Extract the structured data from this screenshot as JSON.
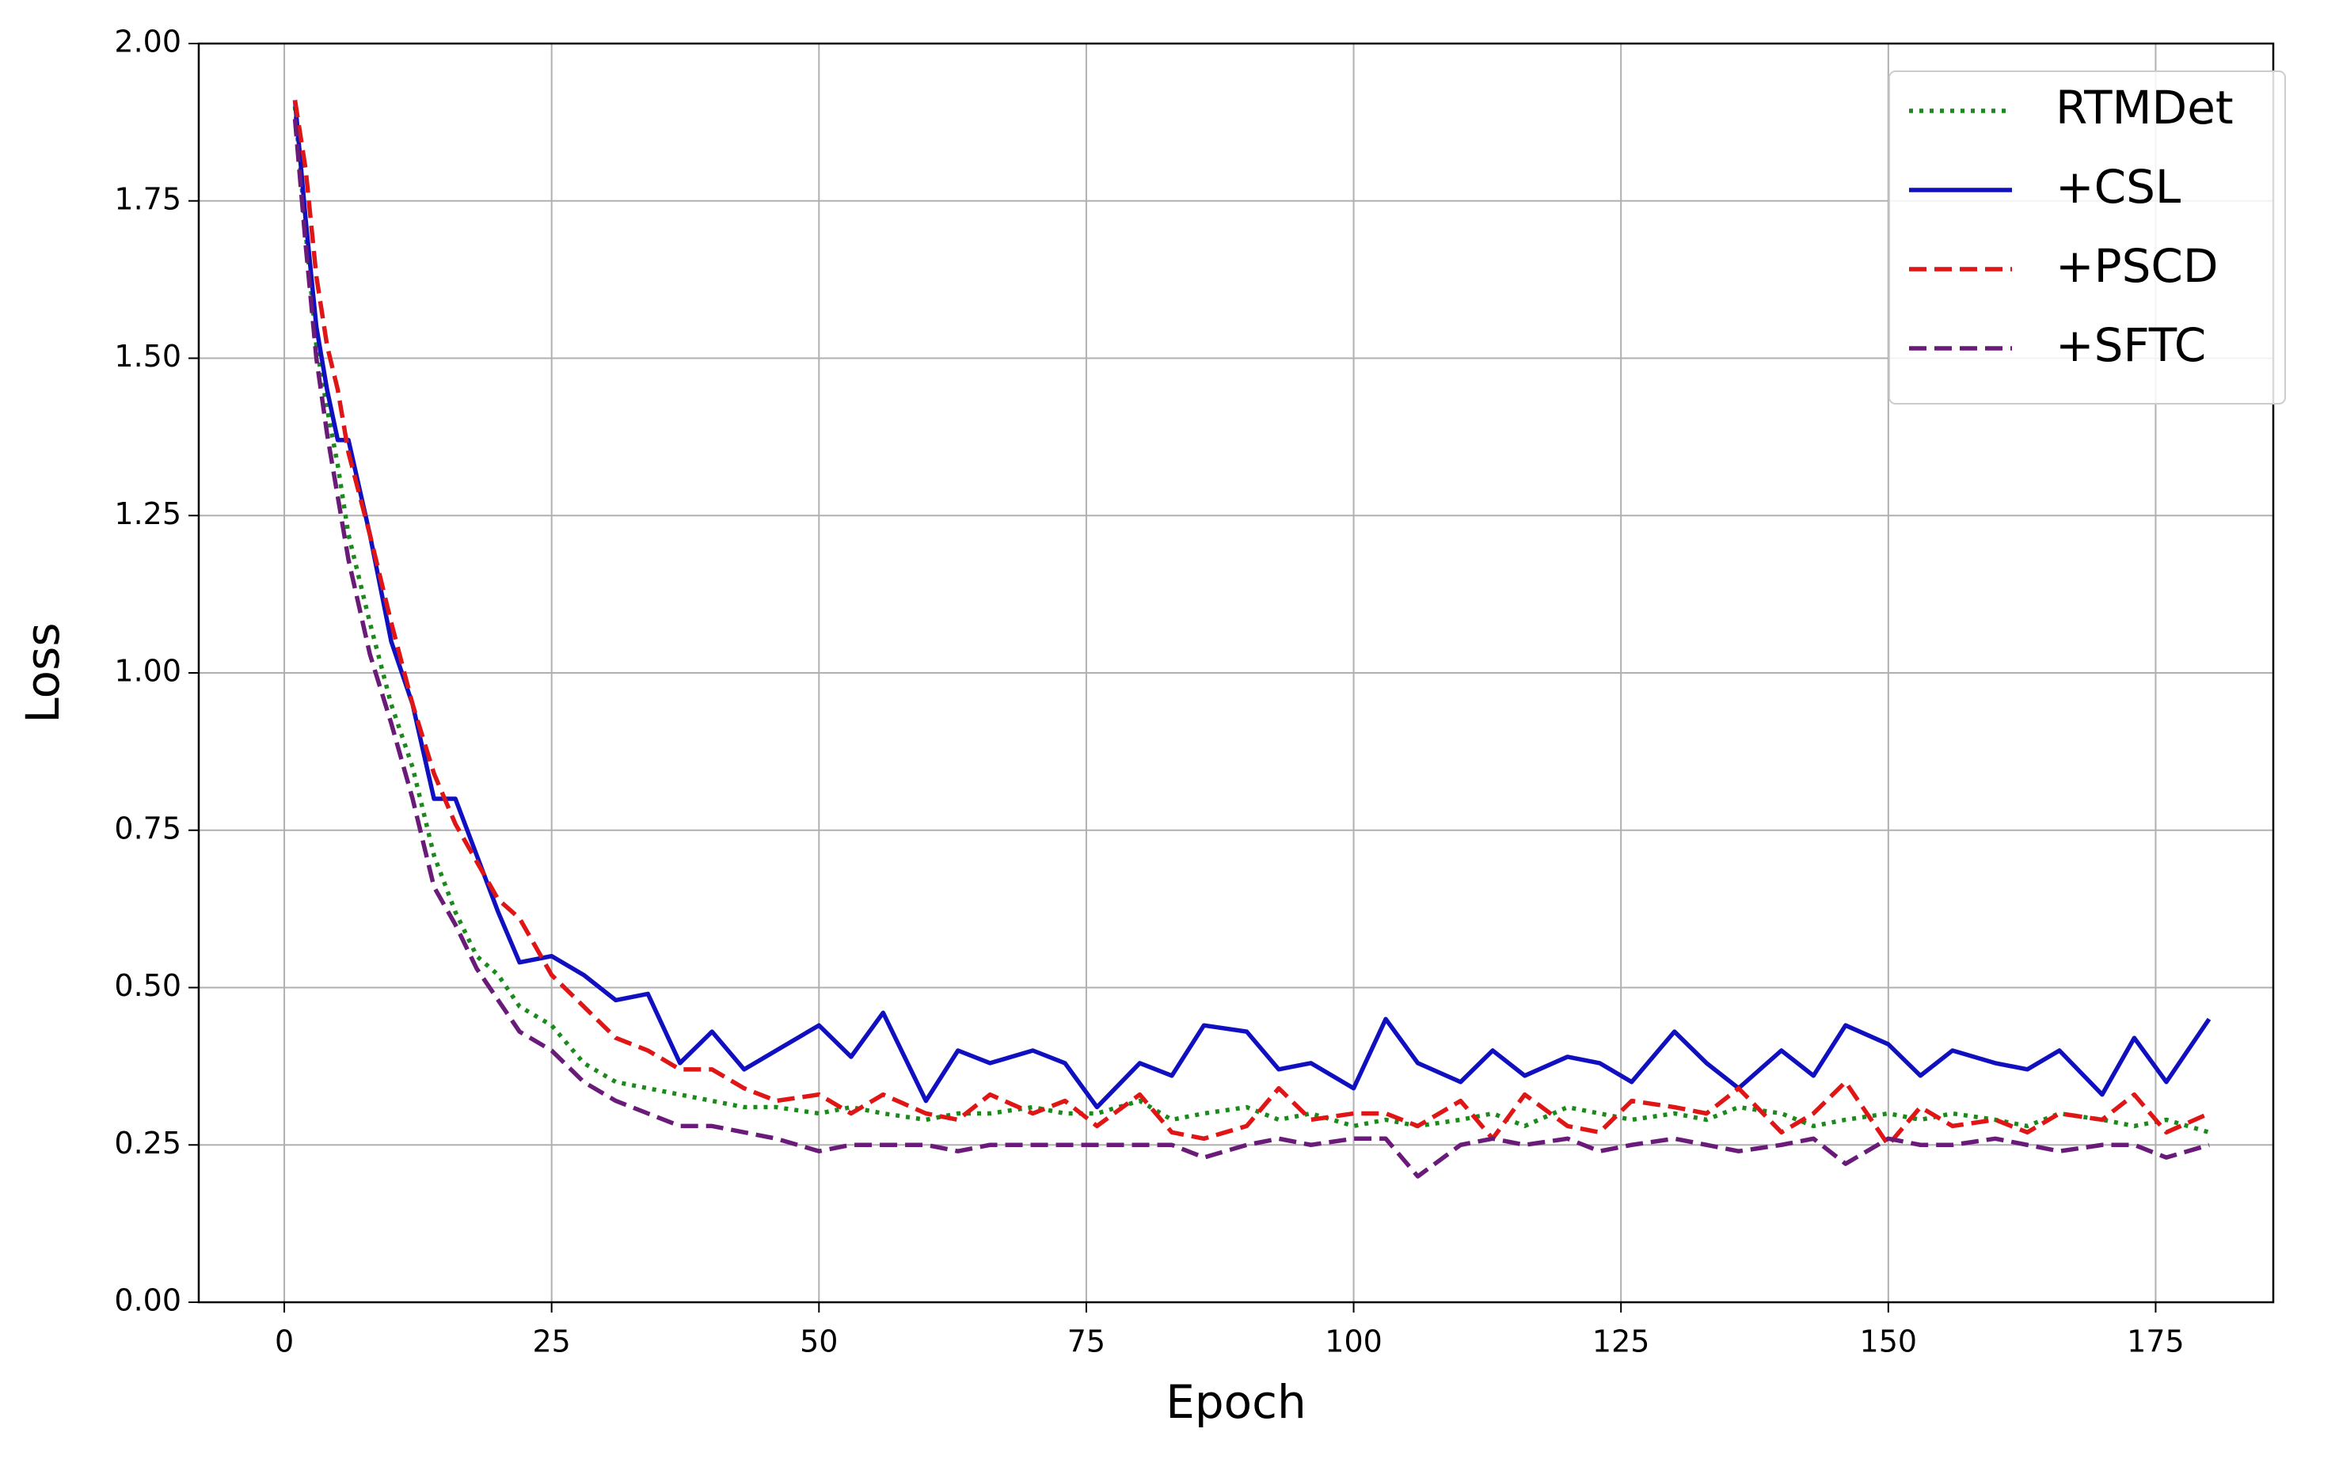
{
  "chart_data": {
    "type": "line",
    "xlabel": "Epoch",
    "ylabel": "Loss",
    "x": [
      1,
      2,
      3,
      4,
      5,
      6,
      8,
      10,
      12,
      14,
      16,
      18,
      20,
      22,
      25,
      28,
      31,
      34,
      37,
      40,
      43,
      46,
      50,
      53,
      56,
      60,
      63,
      66,
      70,
      73,
      76,
      80,
      83,
      86,
      90,
      93,
      96,
      100,
      103,
      106,
      110,
      113,
      116,
      120,
      123,
      126,
      130,
      133,
      136,
      140,
      143,
      146,
      150,
      153,
      156,
      160,
      163,
      166,
      170,
      173,
      176,
      180
    ],
    "series": [
      {
        "name": "RTMDet",
        "color": "#1a8a1a",
        "style": "dotted",
        "values": [
          1.9,
          1.7,
          1.52,
          1.42,
          1.33,
          1.22,
          1.08,
          0.95,
          0.85,
          0.71,
          0.62,
          0.55,
          0.52,
          0.47,
          0.44,
          0.38,
          0.35,
          0.34,
          0.33,
          0.32,
          0.31,
          0.31,
          0.3,
          0.31,
          0.3,
          0.29,
          0.3,
          0.3,
          0.31,
          0.3,
          0.3,
          0.32,
          0.29,
          0.3,
          0.31,
          0.29,
          0.3,
          0.28,
          0.29,
          0.28,
          0.29,
          0.3,
          0.28,
          0.31,
          0.3,
          0.29,
          0.3,
          0.29,
          0.31,
          0.3,
          0.28,
          0.29,
          0.3,
          0.29,
          0.3,
          0.29,
          0.28,
          0.3,
          0.29,
          0.28,
          0.29,
          0.27
        ]
      },
      {
        "name": "+CSL",
        "color": "#1010c0",
        "style": "solid",
        "values": [
          1.91,
          1.72,
          1.55,
          1.45,
          1.37,
          1.37,
          1.22,
          1.05,
          0.95,
          0.8,
          0.8,
          0.71,
          0.62,
          0.54,
          0.55,
          0.52,
          0.48,
          0.49,
          0.38,
          0.43,
          0.37,
          0.4,
          0.44,
          0.39,
          0.46,
          0.32,
          0.4,
          0.38,
          0.4,
          0.38,
          0.31,
          0.38,
          0.36,
          0.44,
          0.43,
          0.37,
          0.38,
          0.34,
          0.45,
          0.38,
          0.35,
          0.4,
          0.36,
          0.39,
          0.38,
          0.35,
          0.43,
          0.38,
          0.34,
          0.4,
          0.36,
          0.44,
          0.41,
          0.36,
          0.4,
          0.38,
          0.37,
          0.4,
          0.33,
          0.42,
          0.35,
          0.45
        ]
      },
      {
        "name": "+PSCD",
        "color": "#e01515",
        "style": "dashed",
        "values": [
          1.91,
          1.8,
          1.63,
          1.52,
          1.45,
          1.35,
          1.22,
          1.08,
          0.95,
          0.84,
          0.76,
          0.7,
          0.64,
          0.61,
          0.52,
          0.47,
          0.42,
          0.4,
          0.37,
          0.37,
          0.34,
          0.32,
          0.33,
          0.3,
          0.33,
          0.3,
          0.29,
          0.33,
          0.3,
          0.32,
          0.28,
          0.33,
          0.27,
          0.26,
          0.28,
          0.34,
          0.29,
          0.3,
          0.3,
          0.28,
          0.32,
          0.26,
          0.33,
          0.28,
          0.27,
          0.32,
          0.31,
          0.3,
          0.34,
          0.27,
          0.3,
          0.35,
          0.25,
          0.31,
          0.28,
          0.29,
          0.27,
          0.3,
          0.29,
          0.33,
          0.27,
          0.3
        ]
      },
      {
        "name": "+SFTC",
        "color": "#6a1a78",
        "style": "dashed",
        "values": [
          1.88,
          1.68,
          1.5,
          1.38,
          1.28,
          1.18,
          1.03,
          0.92,
          0.8,
          0.66,
          0.6,
          0.53,
          0.48,
          0.43,
          0.4,
          0.35,
          0.32,
          0.3,
          0.28,
          0.28,
          0.27,
          0.26,
          0.24,
          0.25,
          0.25,
          0.25,
          0.24,
          0.25,
          0.25,
          0.25,
          0.25,
          0.25,
          0.25,
          0.23,
          0.25,
          0.26,
          0.25,
          0.26,
          0.26,
          0.2,
          0.25,
          0.26,
          0.25,
          0.26,
          0.24,
          0.25,
          0.26,
          0.25,
          0.24,
          0.25,
          0.26,
          0.22,
          0.26,
          0.25,
          0.25,
          0.26,
          0.25,
          0.24,
          0.25,
          0.25,
          0.23,
          0.25
        ]
      }
    ],
    "xlim": [
      -8,
      186
    ],
    "ylim": [
      0,
      2
    ],
    "xticks": [
      0,
      25,
      50,
      75,
      100,
      125,
      150,
      175
    ],
    "yticks": [
      {
        "value": 0,
        "label": "0.00"
      },
      0.25,
      {
        "value": 0.5,
        "label": "0.50"
      },
      0.75,
      {
        "value": 1,
        "label": "1.00"
      },
      1.25,
      {
        "value": 1.5,
        "label": "1.50"
      },
      1.75,
      {
        "value": 2,
        "label": "2.00"
      }
    ],
    "grid": true,
    "legend": "upper right"
  }
}
